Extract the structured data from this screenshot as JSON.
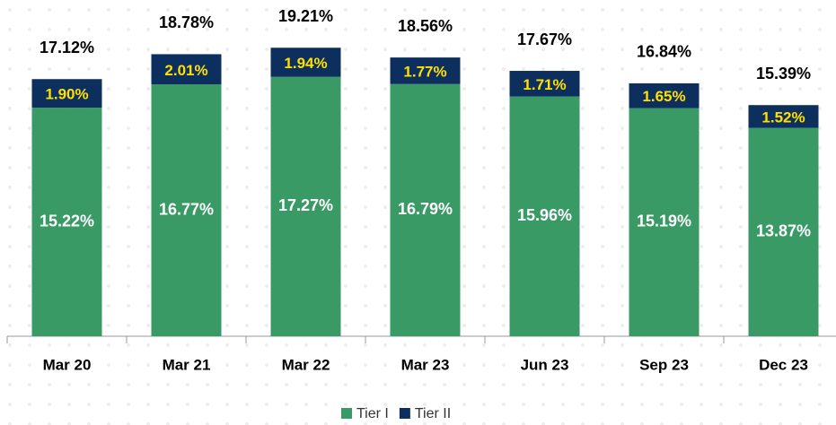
{
  "chart_data": {
    "type": "stacked_bar",
    "categories": [
      "Mar 20",
      "Mar 21",
      "Mar 22",
      "Mar 23",
      "Jun 23",
      "Sep 23",
      "Dec 23"
    ],
    "series": [
      {
        "name": "Tier I",
        "color": "#3a9a66",
        "values": [
          15.22,
          16.77,
          17.27,
          16.79,
          15.96,
          15.19,
          13.87
        ],
        "value_labels": [
          "15.22%",
          "16.77%",
          "17.27%",
          "16.79%",
          "15.96%",
          "15.19%",
          "13.87%"
        ]
      },
      {
        "name": "Tier II",
        "color": "#0d2f5e",
        "values": [
          1.9,
          2.01,
          1.94,
          1.77,
          1.71,
          1.65,
          1.52
        ],
        "value_labels": [
          "1.90%",
          "2.01%",
          "1.94%",
          "1.77%",
          "1.71%",
          "1.65%",
          "1.52%"
        ]
      }
    ],
    "totals": [
      17.12,
      18.78,
      19.21,
      18.56,
      17.67,
      16.84,
      15.39
    ],
    "total_labels": [
      "17.12%",
      "18.78%",
      "19.21%",
      "18.56%",
      "17.67%",
      "16.84%",
      "15.39%"
    ],
    "ylim": [
      0,
      20
    ]
  }
}
